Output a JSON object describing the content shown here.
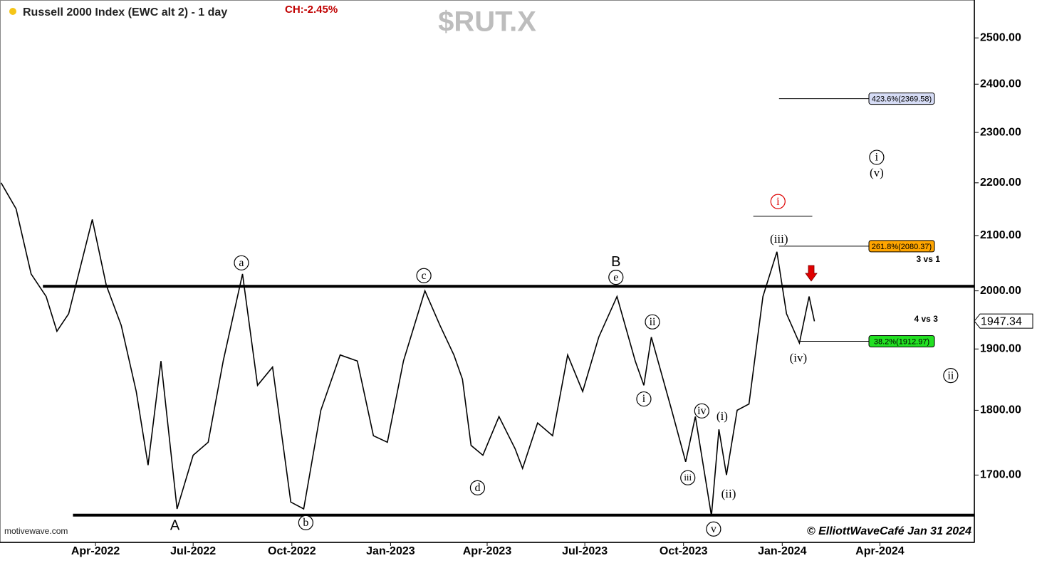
{
  "chart_data": {
    "type": "line",
    "title": "Russell 2000 Index (EWC alt 2) - 1 day",
    "change": "CH:-2.45%",
    "symbol": "$RUT.X",
    "source": "motivewave.com",
    "copyright": "© ElliottWaveCafé Jan 31 2024",
    "log_scale": true,
    "xlim": [
      "2022-01-02",
      "2024-06-28"
    ],
    "ylim": [
      1602,
      2585
    ],
    "xticks": [
      {
        "value": "2022-04-01",
        "label": "Apr-2022"
      },
      {
        "value": "2022-07-01",
        "label": "Jul-2022"
      },
      {
        "value": "2022-10-01",
        "label": "Oct-2022"
      },
      {
        "value": "2023-01-01",
        "label": "Jan-2023"
      },
      {
        "value": "2023-04-01",
        "label": "Apr-2023"
      },
      {
        "value": "2023-07-01",
        "label": "Jul-2023"
      },
      {
        "value": "2023-10-01",
        "label": "Oct-2023"
      },
      {
        "value": "2024-01-01",
        "label": "Jan-2024"
      },
      {
        "value": "2024-04-01",
        "label": "Apr-2024"
      }
    ],
    "yticks": [
      {
        "value": 1700,
        "label": "1700.00"
      },
      {
        "value": 1800,
        "label": "1800.00"
      },
      {
        "value": 1900,
        "label": "1900.00"
      },
      {
        "value": 2000,
        "label": "2000.00"
      },
      {
        "value": 2100,
        "label": "2100.00"
      },
      {
        "value": 2200,
        "label": "2200.00"
      },
      {
        "value": 2300,
        "label": "2300.00"
      },
      {
        "value": 2400,
        "label": "2400.00"
      },
      {
        "value": 2500,
        "label": "2500.00"
      }
    ],
    "x": [
      "2022-01-03",
      "2022-01-17",
      "2022-01-31",
      "2022-02-14",
      "2022-02-24",
      "2022-03-07",
      "2022-03-29",
      "2022-04-11",
      "2022-04-25",
      "2022-05-09",
      "2022-05-20",
      "2022-06-01",
      "2022-06-16",
      "2022-07-01",
      "2022-07-15",
      "2022-07-29",
      "2022-08-16",
      "2022-08-30",
      "2022-09-13",
      "2022-09-30",
      "2022-10-12",
      "2022-10-28",
      "2022-11-15",
      "2022-12-01",
      "2022-12-16",
      "2022-12-29",
      "2023-01-13",
      "2023-02-02",
      "2023-02-16",
      "2023-03-01",
      "2023-03-09",
      "2023-03-17",
      "2023-03-28",
      "2023-04-12",
      "2023-04-27",
      "2023-05-04",
      "2023-05-18",
      "2023-06-01",
      "2023-06-15",
      "2023-06-29",
      "2023-07-14",
      "2023-07-31",
      "2023-08-17",
      "2023-08-25",
      "2023-09-01",
      "2023-09-20",
      "2023-10-03",
      "2023-10-12",
      "2023-10-27",
      "2023-11-03",
      "2023-11-10",
      "2023-11-20",
      "2023-12-01",
      "2023-12-14",
      "2023-12-27",
      "2024-01-05",
      "2024-01-17",
      "2024-01-26",
      "2024-01-31"
    ],
    "series": [
      {
        "name": "Russell 2000 Index",
        "color": "#000000",
        "values": [
          2200,
          2150,
          2030,
          1990,
          1930,
          1960,
          2130,
          2010,
          1940,
          1830,
          1715,
          1880,
          1650,
          1730,
          1750,
          1880,
          2030,
          1840,
          1870,
          1660,
          1650,
          1800,
          1890,
          1880,
          1760,
          1750,
          1880,
          2000,
          1940,
          1890,
          1850,
          1745,
          1730,
          1790,
          1740,
          1710,
          1780,
          1760,
          1890,
          1830,
          1920,
          1990,
          1880,
          1840,
          1920,
          1800,
          1720,
          1790,
          1640,
          1770,
          1700,
          1800,
          1810,
          1990,
          2070,
          1960,
          1910,
          1990,
          1947
        ]
      }
    ],
    "hlines": [
      {
        "value": 2008,
        "start": "2022-02-11"
      },
      {
        "value": 1641,
        "start": "2022-03-11"
      }
    ],
    "fib_levels": [
      {
        "value": 2369.58,
        "label": "423.6%(2369.58)",
        "color": "#d6dcf5",
        "start": "2023-12-29"
      },
      {
        "value": 2080.37,
        "label": "261.8%(2080.37)",
        "color": "#ffa500",
        "start": "2023-12-29"
      },
      {
        "value": 1912.97,
        "label": "38.2%(1912.97)",
        "color": "#22e022",
        "start": "2024-01-17"
      }
    ],
    "target_line": {
      "value": 2136,
      "start": "2023-12-05",
      "end": "2024-01-29",
      "color": "#000000"
    },
    "notes": [
      {
        "text": "3 vs 1",
        "date": "2024-05-16",
        "price": 2056
      },
      {
        "text": "4 vs 3",
        "date": "2024-05-14",
        "price": 1950
      }
    ],
    "last_price": 1947.34,
    "annotations": [
      {
        "text": "a",
        "date": "2022-08-15",
        "price": 2050,
        "circled": true,
        "color": "#000000"
      },
      {
        "text": "A",
        "date": "2022-06-14",
        "price": 1626,
        "circled": false,
        "color": "#000000"
      },
      {
        "text": "b",
        "date": "2022-10-14",
        "price": 1630,
        "circled": true,
        "color": "#000000"
      },
      {
        "text": "c",
        "date": "2023-02-01",
        "price": 2027,
        "circled": true,
        "color": "#000000"
      },
      {
        "text": "d",
        "date": "2023-03-23",
        "price": 1681,
        "circled": true,
        "color": "#000000"
      },
      {
        "text": "e",
        "date": "2023-07-30",
        "price": 2024,
        "circled": true,
        "color": "#000000"
      },
      {
        "text": "B",
        "date": "2023-07-30",
        "price": 2052,
        "circled": false,
        "color": "#000000"
      },
      {
        "text": "i",
        "date": "2023-08-25",
        "price": 1818,
        "circled": true,
        "color": "#000000"
      },
      {
        "text": "ii",
        "date": "2023-09-02",
        "price": 1946,
        "circled": true,
        "color": "#000000"
      },
      {
        "text": "iii",
        "date": "2023-10-05",
        "price": 1696,
        "circled": true,
        "color": "#000000"
      },
      {
        "text": "iv",
        "date": "2023-10-18",
        "price": 1799,
        "circled": true,
        "color": "#000000"
      },
      {
        "text": "v",
        "date": "2023-10-29",
        "price": 1621,
        "circled": true,
        "color": "#000000"
      },
      {
        "text": "(i)",
        "date": "2023-11-06",
        "price": 1790,
        "circled": false,
        "color": "#000000"
      },
      {
        "text": "(ii)",
        "date": "2023-11-12",
        "price": 1672,
        "circled": false,
        "color": "#000000"
      },
      {
        "text": "(iii)",
        "date": "2023-12-29",
        "price": 2093,
        "circled": false,
        "color": "#000000"
      },
      {
        "text": "(iv)",
        "date": "2024-01-16",
        "price": 1885,
        "circled": false,
        "color": "#000000"
      },
      {
        "text": "i",
        "date": "2023-12-28",
        "price": 2164,
        "circled": true,
        "color": "#dd0000"
      },
      {
        "text": "i",
        "date": "2024-03-29",
        "price": 2250,
        "circled": true,
        "color": "#000000"
      },
      {
        "text": "(v)",
        "date": "2024-03-29",
        "price": 2219,
        "circled": false,
        "color": "#000000"
      },
      {
        "text": "ii",
        "date": "2024-06-06",
        "price": 1856,
        "circled": true,
        "color": "#000000"
      }
    ]
  }
}
